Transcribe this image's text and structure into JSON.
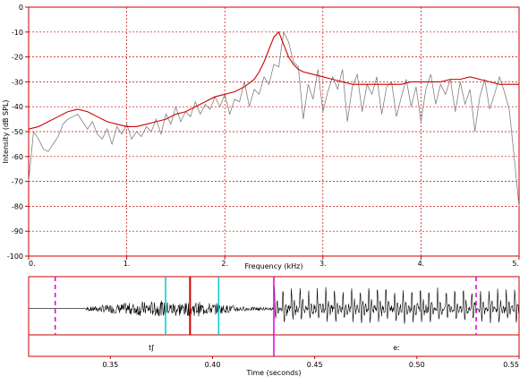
{
  "chart_data": [
    {
      "type": "line",
      "title": "",
      "xlabel": "Frequency (kHz)",
      "ylabel": "Intensity (dB SPL)",
      "xlim": [
        0,
        5
      ],
      "ylim": [
        -100,
        0
      ],
      "grid": true,
      "x_ticks": [
        "0.",
        "1.",
        "2.",
        "3.",
        "4.",
        "5."
      ],
      "y_ticks": [
        "0",
        "-10",
        "-20",
        "-30",
        "-40",
        "-50",
        "-60",
        "-70",
        "-80",
        "-90",
        "-100"
      ],
      "series": [
        {
          "color": "#808080",
          "x": [
            0.0,
            0.05,
            0.1,
            0.15,
            0.2,
            0.25,
            0.3,
            0.35,
            0.4,
            0.45,
            0.5,
            0.55,
            0.6,
            0.65,
            0.7,
            0.75,
            0.8,
            0.85,
            0.9,
            0.95,
            1.0,
            1.05,
            1.1,
            1.15,
            1.2,
            1.25,
            1.3,
            1.35,
            1.4,
            1.45,
            1.5,
            1.55,
            1.6,
            1.65,
            1.7,
            1.75,
            1.8,
            1.85,
            1.9,
            1.95,
            2.0,
            2.05,
            2.1,
            2.15,
            2.2,
            2.25,
            2.3,
            2.35,
            2.4,
            2.45,
            2.5,
            2.55,
            2.6,
            2.65,
            2.7,
            2.75,
            2.8,
            2.85,
            2.9,
            2.95,
            3.0,
            3.05,
            3.1,
            3.15,
            3.2,
            3.25,
            3.3,
            3.35,
            3.4,
            3.45,
            3.5,
            3.55,
            3.6,
            3.65,
            3.7,
            3.75,
            3.8,
            3.85,
            3.9,
            3.95,
            4.0,
            4.05,
            4.1,
            4.15,
            4.2,
            4.25,
            4.3,
            4.35,
            4.4,
            4.45,
            4.5,
            4.55,
            4.6,
            4.65,
            4.7,
            4.75,
            4.8,
            4.85,
            4.9,
            4.95,
            5.0
          ],
          "y": [
            -70,
            -50,
            -53,
            -57,
            -58,
            -55,
            -52,
            -47,
            -45,
            -44,
            -43,
            -46,
            -49,
            -46,
            -51,
            -53,
            -49,
            -55,
            -48,
            -51,
            -47,
            -53,
            -50,
            -52,
            -48,
            -50,
            -45,
            -51,
            -43,
            -47,
            -40,
            -46,
            -42,
            -44,
            -38,
            -43,
            -39,
            -41,
            -36,
            -40,
            -35,
            -43,
            -37,
            -38,
            -30,
            -40,
            -33,
            -35,
            -28,
            -31,
            -23,
            -24,
            -10,
            -14,
            -22,
            -24,
            -45,
            -31,
            -37,
            -25,
            -42,
            -34,
            -28,
            -33,
            -25,
            -46,
            -32,
            -27,
            -42,
            -31,
            -35,
            -28,
            -43,
            -32,
            -30,
            -44,
            -36,
            -29,
            -40,
            -32,
            -46,
            -33,
            -27,
            -39,
            -31,
            -35,
            -29,
            -42,
            -30,
            -39,
            -33,
            -50,
            -36,
            -29,
            -41,
            -35,
            -28,
            -34,
            -41,
            -60,
            -80
          ]
        },
        {
          "color": "#cc0000",
          "x": [
            0.0,
            0.1,
            0.2,
            0.3,
            0.4,
            0.5,
            0.6,
            0.7,
            0.8,
            0.9,
            1.0,
            1.1,
            1.2,
            1.3,
            1.4,
            1.5,
            1.6,
            1.7,
            1.8,
            1.9,
            2.0,
            2.1,
            2.2,
            2.3,
            2.35,
            2.4,
            2.45,
            2.5,
            2.55,
            2.6,
            2.65,
            2.7,
            2.75,
            2.8,
            2.9,
            3.0,
            3.1,
            3.2,
            3.3,
            3.4,
            3.5,
            3.6,
            3.7,
            3.8,
            3.9,
            4.0,
            4.1,
            4.2,
            4.3,
            4.4,
            4.5,
            4.6,
            4.7,
            4.8,
            4.9,
            5.0
          ],
          "y": [
            -49,
            -48,
            -46,
            -44,
            -42,
            -41,
            -42,
            -44,
            -46,
            -47,
            -48,
            -48,
            -47,
            -46,
            -45,
            -43,
            -42,
            -40,
            -38,
            -36,
            -35,
            -34,
            -32,
            -29,
            -26,
            -22,
            -17,
            -12,
            -10,
            -15,
            -20,
            -23,
            -25,
            -26,
            -27,
            -28,
            -29,
            -30,
            -31,
            -31,
            -31,
            -31,
            -31,
            -31,
            -30,
            -30,
            -30,
            -30,
            -29,
            -29,
            -28,
            -29,
            -30,
            -31,
            -31,
            -31
          ]
        }
      ]
    },
    {
      "type": "line",
      "title": "",
      "xlabel": "Time (seconds)",
      "ylabel": "",
      "xlim": [
        0.31,
        0.55
      ],
      "grid": false,
      "x_ticks": [
        "0.35",
        "0.40",
        "0.45",
        "0.50",
        "0.55"
      ],
      "markers": [
        {
          "t": 0.323,
          "color": "#dd00dd",
          "style": "dashed"
        },
        {
          "t": 0.377,
          "color": "#00cccc",
          "style": "solid"
        },
        {
          "t": 0.389,
          "color": "#cc0000",
          "style": "solid"
        },
        {
          "t": 0.403,
          "color": "#00cccc",
          "style": "solid"
        },
        {
          "t": 0.43,
          "color": "#dd00dd",
          "style": "solid"
        },
        {
          "t": 0.529,
          "color": "#dd00dd",
          "style": "dashed"
        }
      ],
      "segments": [
        {
          "label": "tʃ",
          "start": 0.31,
          "end": 0.43
        },
        {
          "label": "eː",
          "start": 0.43,
          "end": 0.55
        }
      ]
    }
  ]
}
